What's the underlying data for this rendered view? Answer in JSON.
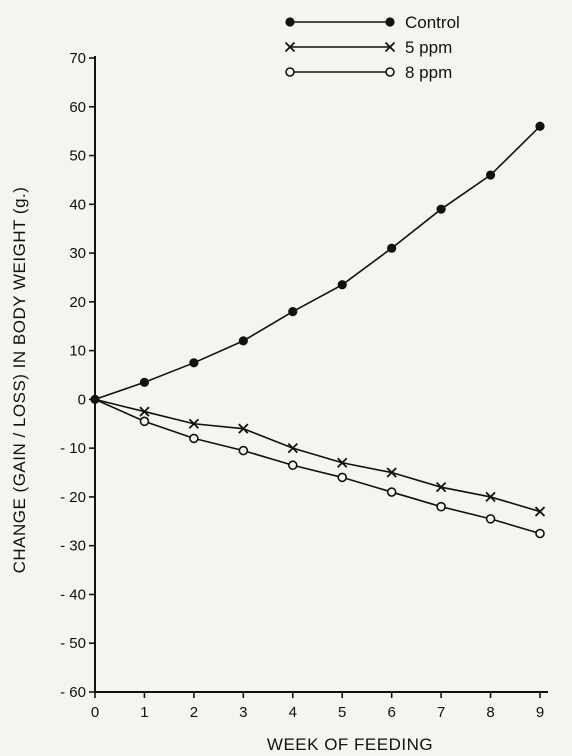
{
  "chart_data": {
    "type": "line",
    "xlabel": "WEEK OF FEEDING",
    "ylabel": "CHANGE (GAIN / LOSS) IN BODY WEIGHT (g.)",
    "x": [
      0,
      1,
      2,
      3,
      4,
      5,
      6,
      7,
      8,
      9
    ],
    "xlim": [
      0,
      9
    ],
    "ylim": [
      -60,
      70
    ],
    "yticks": [
      70,
      60,
      50,
      40,
      30,
      20,
      10,
      0,
      -10,
      -20,
      -30,
      -40,
      -50,
      -60
    ],
    "ytick_labels": [
      "70",
      "60",
      "50",
      "40",
      "30",
      "20",
      "10",
      "0",
      "- 10",
      "- 20",
      "- 30",
      "- 40",
      "- 50",
      "- 60"
    ],
    "grid": false,
    "legend_position": "top-right",
    "series": [
      {
        "name": "Control",
        "marker": "filled-circle",
        "values": [
          0,
          3.5,
          7.5,
          12,
          18,
          23.5,
          31,
          39,
          46,
          56
        ]
      },
      {
        "name": "5 ppm",
        "marker": "cross",
        "values": [
          0,
          -2.5,
          -5,
          -6,
          -10,
          -13,
          -15,
          -18,
          -20,
          -23
        ]
      },
      {
        "name": "8 ppm",
        "marker": "open-circle",
        "values": [
          0,
          -4.5,
          -8,
          -10.5,
          -13.5,
          -16,
          -19,
          -22,
          -24.5,
          -27.5
        ]
      }
    ]
  }
}
